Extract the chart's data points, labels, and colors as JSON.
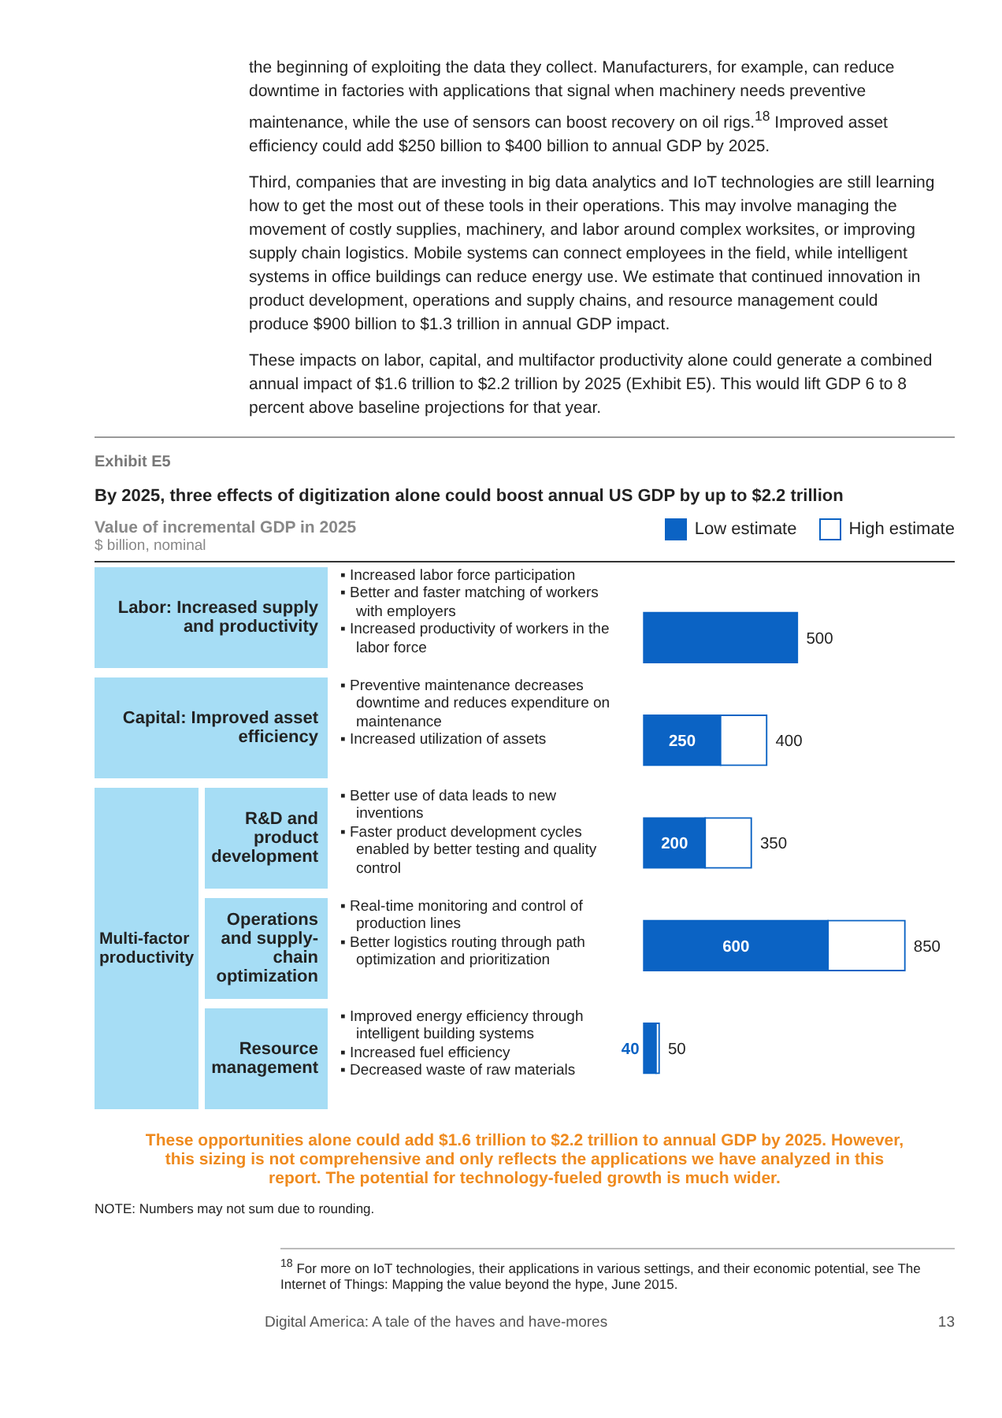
{
  "chart_data": {
    "type": "bar",
    "orientation": "horizontal",
    "title": "By 2025, three effects of digitization alone could boost annual US GDP by up to $2.2 trillion",
    "subtitle": "Value of incremental GDP in 2025",
    "xlabel": "$ billion, nominal",
    "legend": "top right",
    "categories": [
      "Labor: Increased supply and productivity",
      "Capital: Improved asset efficiency",
      "R&D and product development",
      "Operations and supply-chain optimization",
      "Resource management"
    ],
    "series": [
      {
        "name": "Low estimate",
        "color": "#0b63c4",
        "values": [
          500,
          250,
          200,
          600,
          40
        ],
        "value_labels": [
          null,
          "250",
          "200",
          "600",
          "40"
        ]
      },
      {
        "name": "High estimate",
        "color": "#ffffff",
        "values": [
          null,
          150,
          150,
          250,
          10
        ]
      }
    ],
    "stacked": true,
    "totals": [
      "500",
      "400",
      "350",
      "850",
      "50"
    ],
    "annotations": [
      "the beginning of exploiting the data they collect. Manufacturers, for example, can reduce downtime in factories with applications that signal when machinery needs preventive maintenance, while the use of sensors can boost recovery on oil rigs.$^{18}$ Improved asset efficiency could add $250 billion to $400 billion to annual GDP by 2025.",
      "Third, companies that are investing in big data analytics and IoT technologies are still learning how to get the most out of these tools in their operations. This may involve managing the movement of costly supplies, machinery, and labor around complex worksites, or improving supply chain logistics. Mobile systems can connect employees in the field, while intelligent systems in office buildings can reduce energy use. We estimate that continued innovation in product development, operations and supply chains, and resource management could produce $900 billion to $1.3 trillion in annual GDP impact.",
      "These impacts on labor, capital, and multifactor productivity alone could generate a combined annual impact of $1.6 trillion to $2.2 trillion by 2025 (Exhibit E5). This would lift GDP 6 to 8 percent above baseline projections for that year.",
      "Exhibit E5",
      "Multi-factor productivity",
      "▪ Increased labor force participation\n▪ Better and faster matching of workers with employers\n▪ Increased productivity of workers in the labor force",
      "▪ Preventive maintenance decreases downtime and reduces expenditure on maintenance\n▪ Increased utilization of assets",
      "▪ Better use of data leads to new inventions\n▪ Faster product development cycles enabled by better testing and quality control",
      "▪ Real-time monitoring and control of production lines\n▪ Better logistics routing through path optimization and prioritization",
      "▪ Improved energy efficiency through intelligent building systems\n▪ Increased fuel efficiency\n▪ Decreased waste of raw materials",
      "These opportunities alone could add $1.6 trillion to $2.2 trillion to annual GDP by 2025. However, this sizing is not comprehensive and only reflects the applications we have analyzed in this report. The potential for technology-fueled growth is much wider.",
      "NOTE: Numbers may not sum due to rounding.",
      "$^{18}$ For more on IoT technologies, their applications in various settings, and their economic potential, see The Internet of Things: Mapping the value beyond the hype, June 2015.",
      "Digital America: A tale of the haves and have-mores",
      "13"
    ]
  }
}
